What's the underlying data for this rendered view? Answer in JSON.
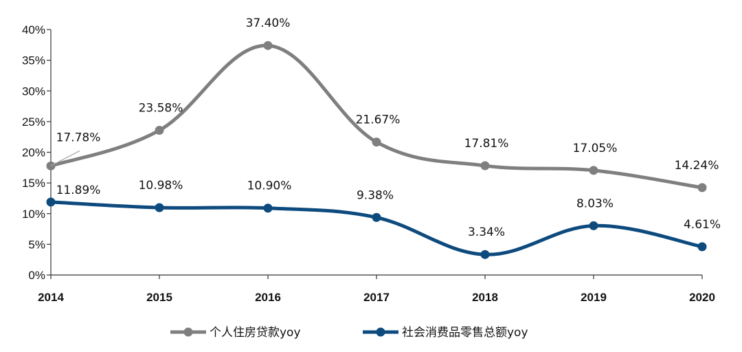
{
  "chart_data": {
    "type": "line",
    "categories": [
      "2014",
      "2015",
      "2016",
      "2017",
      "2018",
      "2019",
      "2020"
    ],
    "y_tick_labels": [
      "0%",
      "5%",
      "10%",
      "15%",
      "20%",
      "25%",
      "30%",
      "35%",
      "40%"
    ],
    "ylim": [
      0,
      40
    ],
    "series": [
      {
        "name": "个人住房贷款yoy",
        "color": "#7f7f7f",
        "values": [
          17.78,
          23.58,
          37.4,
          21.67,
          17.81,
          17.05,
          14.24
        ],
        "labels": [
          "17.78%",
          "23.58%",
          "37.40%",
          "21.67%",
          "17.81%",
          "17.05%",
          "14.24%"
        ]
      },
      {
        "name": "社会消费品零售总额yoy",
        "color": "#0d4a7e",
        "values": [
          11.89,
          10.98,
          10.9,
          9.38,
          3.34,
          8.03,
          4.61
        ],
        "labels": [
          "11.89%",
          "10.98%",
          "10.90%",
          "9.38%",
          "3.34%",
          "8.03%",
          "4.61%"
        ]
      }
    ],
    "legend_position": "bottom-center",
    "grid": false
  }
}
